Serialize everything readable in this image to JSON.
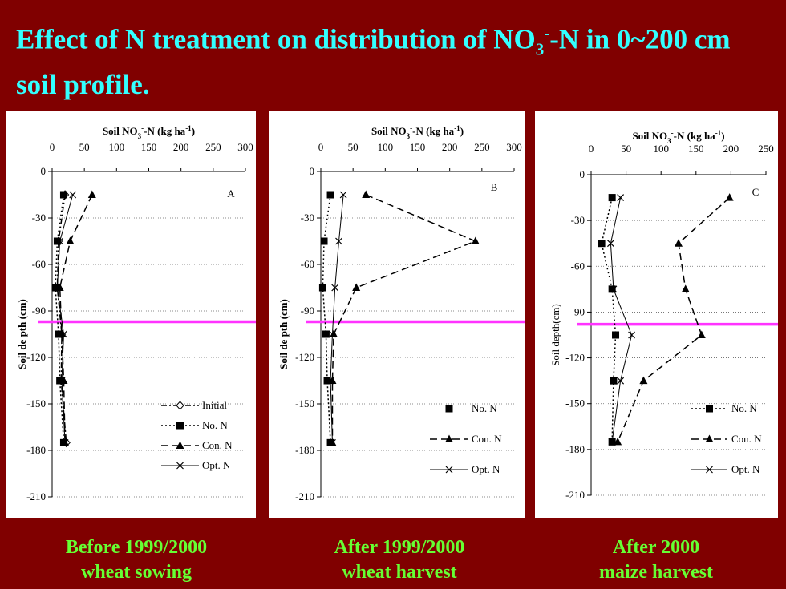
{
  "title_text": "Effect of N treatment on distribution of NO",
  "title_sub": "3",
  "title_sup": "-",
  "title_rest": "-N in 0~200 cm soil profile.",
  "captions": [
    {
      "line1": "Before 1999/2000",
      "line2": "wheat sowing"
    },
    {
      "line1": "After 1999/2000",
      "line2": "wheat harvest"
    },
    {
      "line1": "After 2000",
      "line2": "maize harvest"
    }
  ],
  "colors": {
    "background": "#800000",
    "title": "#33ffff",
    "caption": "#66ff33",
    "reference_line": "#ff33ff"
  },
  "chart_data": [
    {
      "type": "line",
      "panel_label": "A",
      "x_axis_title": {
        "a": "Soil NO",
        "sub": "3",
        "sup1": "-",
        "b": "-N (kg ha",
        "sup2": "-1",
        "c": ")"
      },
      "ylabel": "Soil de pth (cm)",
      "xlim": [
        0,
        300
      ],
      "ylim": [
        -210,
        0
      ],
      "xticks": [
        "0",
        "50",
        "100",
        "150",
        "200",
        "250",
        "300"
      ],
      "yticks": [
        "0",
        "-30",
        "-60",
        "-90",
        "-120",
        "-150",
        "-180",
        "-210"
      ],
      "reference_depth": -97,
      "legend": "bottom-right",
      "series": [
        {
          "name": "Initial",
          "marker": "diamond",
          "dash": "dashdot",
          "x": [
            20,
            10,
            8,
            15,
            14,
            22
          ],
          "y": [
            -15,
            -45,
            -75,
            -105,
            -135,
            -175
          ]
        },
        {
          "name": "No. N",
          "marker": "square",
          "dash": "dotted",
          "x": [
            18,
            8,
            5,
            10,
            12,
            18
          ],
          "y": [
            -15,
            -45,
            -75,
            -105,
            -135,
            -175
          ]
        },
        {
          "name": "Con. N",
          "marker": "triangle",
          "dash": "dashed",
          "x": [
            62,
            28,
            12,
            15,
            18,
            20
          ],
          "y": [
            -15,
            -45,
            -75,
            -105,
            -135,
            -175
          ]
        },
        {
          "name": "Opt. N",
          "marker": "cross",
          "dash": "solid",
          "x": [
            32,
            12,
            8,
            18,
            15,
            20
          ],
          "y": [
            -15,
            -45,
            -75,
            -105,
            -135,
            -175
          ]
        }
      ]
    },
    {
      "type": "line",
      "panel_label": "B",
      "x_axis_title": {
        "a": "Soil NO",
        "sub": "3",
        "sup1": "-",
        "b": "-N (kg ha",
        "sup2": "-1",
        "c": ")"
      },
      "ylabel": "Soil de pth (cm)",
      "xlim": [
        0,
        300
      ],
      "ylim": [
        -210,
        0
      ],
      "xticks": [
        "0",
        "50",
        "100",
        "150",
        "200",
        "250",
        "300"
      ],
      "yticks": [
        "0",
        "-30",
        "-60",
        "-90",
        "-120",
        "-150",
        "-180",
        "-210"
      ],
      "reference_depth": -97,
      "legend": "bottom-right",
      "series": [
        {
          "name": "No. N",
          "marker": "square",
          "dash": "dotted",
          "x": [
            15,
            5,
            3,
            8,
            10,
            15
          ],
          "y": [
            -15,
            -45,
            -75,
            -105,
            -135,
            -175
          ]
        },
        {
          "name": "Con. N",
          "marker": "triangle",
          "dash": "dashed",
          "x": [
            70,
            240,
            55,
            20,
            18,
            18
          ],
          "y": [
            -15,
            -45,
            -75,
            -105,
            -135,
            -175
          ]
        },
        {
          "name": "Opt. N",
          "marker": "cross",
          "dash": "solid",
          "x": [
            35,
            28,
            22,
            18,
            15,
            18
          ],
          "y": [
            -15,
            -45,
            -75,
            -105,
            -135,
            -175
          ]
        }
      ]
    },
    {
      "type": "line",
      "panel_label": "C",
      "x_axis_title": {
        "a": "Soil NO",
        "sub": "3",
        "sup1": "-",
        "b": "-N (kg ha",
        "sup2": "-1",
        "c": ")"
      },
      "ylabel": "Soil depth(cm)",
      "xlim": [
        0,
        250
      ],
      "ylim": [
        -210,
        0
      ],
      "xticks": [
        "0",
        "50",
        "100",
        "150",
        "200",
        "250"
      ],
      "yticks": [
        "0",
        "-30",
        "-60",
        "-90",
        "-120",
        "-150",
        "-180",
        "-210"
      ],
      "reference_depth": -98,
      "legend": "bottom-right",
      "series": [
        {
          "name": "No. N",
          "marker": "square",
          "dash": "dotted",
          "x": [
            30,
            15,
            30,
            35,
            32,
            30
          ],
          "y": [
            -15,
            -45,
            -75,
            -105,
            -135,
            -175
          ]
        },
        {
          "name": "Con. N",
          "marker": "triangle",
          "dash": "dashed",
          "x": [
            198,
            125,
            135,
            158,
            75,
            38
          ],
          "y": [
            -15,
            -45,
            -75,
            -105,
            -135,
            -175
          ]
        },
        {
          "name": "Opt. N",
          "marker": "cross",
          "dash": "solid",
          "x": [
            42,
            28,
            32,
            58,
            42,
            30
          ],
          "y": [
            -15,
            -45,
            -75,
            -105,
            -135,
            -175
          ]
        }
      ]
    }
  ]
}
